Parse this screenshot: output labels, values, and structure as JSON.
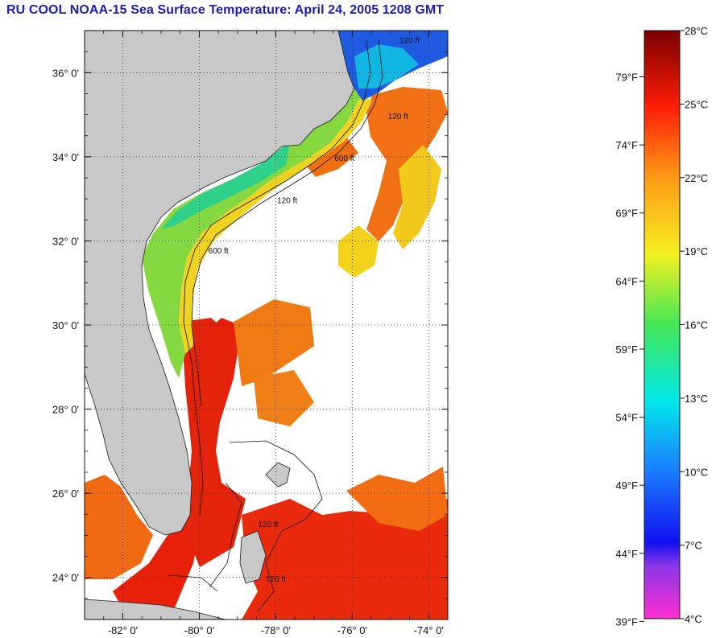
{
  "title": "RU COOL  NOAA-15  Sea Surface Temperature:  April 24, 2005 1208 GMT",
  "map": {
    "lon_range": [
      -83,
      -73.5
    ],
    "lat_range": [
      23,
      37
    ],
    "lat_ticks": [
      {
        "value": 24,
        "label": "24° 0'"
      },
      {
        "value": 26,
        "label": "26° 0'"
      },
      {
        "value": 28,
        "label": "28° 0'"
      },
      {
        "value": 30,
        "label": "30° 0'"
      },
      {
        "value": 32,
        "label": "32° 0'"
      },
      {
        "value": 34,
        "label": "34° 0'"
      },
      {
        "value": 36,
        "label": "36° 0'"
      }
    ],
    "lon_ticks": [
      {
        "value": -82,
        "label": "-82° 0'"
      },
      {
        "value": -80,
        "label": "-80° 0'"
      },
      {
        "value": -78,
        "label": "-78° 0'"
      },
      {
        "value": -76,
        "label": "-76° 0'"
      },
      {
        "value": -74,
        "label": "-74° 0'"
      }
    ],
    "grid": "dotted",
    "contour_labels": [
      {
        "text": "120 ft",
        "lon": -74.5,
        "lat": 36.7
      },
      {
        "text": "120 ft",
        "lon": -74.8,
        "lat": 34.9
      },
      {
        "text": "600 ft",
        "lon": -76.2,
        "lat": 33.9
      },
      {
        "text": "120 ft",
        "lon": -77.7,
        "lat": 32.9
      },
      {
        "text": "600 ft",
        "lon": -79.5,
        "lat": 31.7
      },
      {
        "text": "120 ft",
        "lon": -78.2,
        "lat": 25.2
      },
      {
        "text": "120 ft",
        "lon": -78.0,
        "lat": 23.9
      }
    ],
    "colors": {
      "land": "#c8c8c8",
      "no_data": "#ffffff",
      "warm": "#e8200a",
      "orange": "#f07a12",
      "yellow": "#f2d21a",
      "green": "#7fd63a",
      "cool": "#1e5be0"
    }
  },
  "colorbar": {
    "celsius": [
      "28°C",
      "25°C",
      "22°C",
      "19°C",
      "16°C",
      "13°C",
      "10°C",
      "7°C",
      "4°C"
    ],
    "fahrenheit": [
      "79°F",
      "74°F",
      "69°F",
      "64°F",
      "59°F",
      "54°F",
      "49°F",
      "44°F",
      "39°F"
    ],
    "celsius_values": [
      28,
      25,
      22,
      19,
      16,
      13,
      10,
      7,
      4
    ],
    "fahrenheit_values": [
      79,
      74,
      69,
      64,
      59,
      54,
      49,
      44,
      39
    ],
    "range_c": [
      4,
      28
    ]
  }
}
